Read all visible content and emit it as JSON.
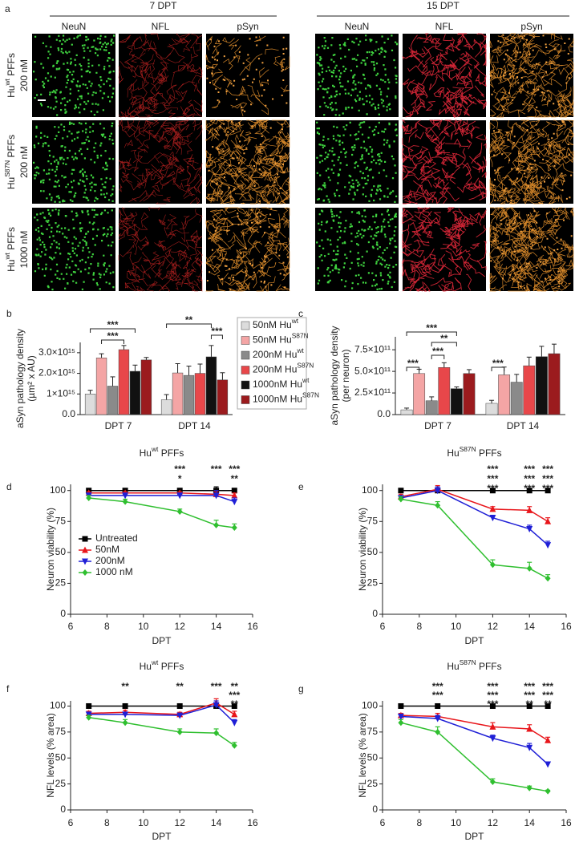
{
  "panel_a": {
    "label": "a",
    "timepoints": [
      "7 DPT",
      "15 DPT"
    ],
    "stains": [
      "NeuN",
      "NFL",
      "pSyn"
    ],
    "conditions": [
      {
        "name": "Hu",
        "sup": "wt",
        "suffix": " PFFs",
        "dose": "200 nM"
      },
      {
        "name": "Hu",
        "sup": "S87N",
        "suffix": " PFFs",
        "dose": "200 nM"
      },
      {
        "name": "Hu",
        "sup": "wt",
        "suffix": " PFFs",
        "dose": "1000 nM"
      }
    ]
  },
  "chart_data": [
    {
      "type": "bar",
      "panel": "b",
      "ylabel": [
        "aSyn pathology density",
        "(µm² x AU)"
      ],
      "categories": [
        "DPT 7",
        "DPT 14"
      ],
      "series": [
        {
          "name": "50nM Hu",
          "sup": "wt",
          "color": "#dcdcdc",
          "values": [
            1000000000000000.0,
            720000000000000.0
          ],
          "errors": [
            180000000000000.0,
            250000000000000.0
          ]
        },
        {
          "name": "50nM Hu",
          "sup": "S87N",
          "color": "#f4a5a5",
          "values": [
            2750000000000000.0,
            2020000000000000.0
          ],
          "errors": [
            200000000000000.0,
            450000000000000.0
          ]
        },
        {
          "name": "200nM Hu",
          "sup": "wt",
          "color": "#8a8a8a",
          "values": [
            1380000000000000.0,
            1900000000000000.0
          ],
          "errors": [
            450000000000000.0,
            450000000000000.0
          ]
        },
        {
          "name": "200nM Hu",
          "sup": "S87N",
          "color": "#e8474a",
          "values": [
            3150000000000000.0,
            2000000000000000.0
          ],
          "errors": [
            200000000000000.0,
            450000000000000.0
          ]
        },
        {
          "name": "1000nM Hu",
          "sup": "wt",
          "color": "#111111",
          "values": [
            2100000000000000.0,
            2800000000000000.0
          ],
          "errors": [
            300000000000000.0,
            550000000000000.0
          ]
        },
        {
          "name": "1000nM Hu",
          "sup": "S87N",
          "color": "#9b1b1e",
          "values": [
            2650000000000000.0,
            1680000000000000.0
          ],
          "errors": [
            120000000000000.0,
            350000000000000.0
          ]
        }
      ],
      "ylim": [
        0,
        3500000000000000.0
      ],
      "yticks": [
        {
          "value": 0,
          "label": "0.0"
        },
        {
          "value": 1000000000000000.0,
          "label": "1×10¹⁵"
        },
        {
          "value": 2000000000000000.0,
          "label": "2.0×10¹⁵"
        },
        {
          "value": 3000000000000000.0,
          "label": "3.0×10¹⁵"
        }
      ],
      "legend": "right",
      "significance": [
        "***",
        "***",
        "**",
        "***"
      ]
    },
    {
      "type": "bar",
      "panel": "c",
      "ylabel": [
        "aSyn pathology density",
        "(per neuron)"
      ],
      "categories": [
        "DPT 7",
        "DPT 14"
      ],
      "series": [
        {
          "color": "#dcdcdc",
          "values": [
            55000000000.0,
            130000000000.0
          ],
          "errors": [
            20000000000.0,
            35000000000.0
          ]
        },
        {
          "color": "#f4a5a5",
          "values": [
            475000000000.0,
            460000000000.0
          ],
          "errors": [
            50000000000.0,
            90000000000.0
          ]
        },
        {
          "color": "#8a8a8a",
          "values": [
            160000000000.0,
            375000000000.0
          ],
          "errors": [
            45000000000.0,
            90000000000.0
          ]
        },
        {
          "color": "#e8474a",
          "values": [
            545000000000.0,
            565000000000.0
          ],
          "errors": [
            55000000000.0,
            100000000000.0
          ]
        },
        {
          "color": "#111111",
          "values": [
            300000000000.0,
            670000000000.0
          ],
          "errors": [
            20000000000.0,
            120000000000.0
          ]
        },
        {
          "color": "#9b1b1e",
          "values": [
            475000000000.0,
            705000000000.0
          ],
          "errors": [
            45000000000.0,
            110000000000.0
          ]
        }
      ],
      "ylim": [
        0,
        900000000000.0
      ],
      "yticks": [
        {
          "value": 0,
          "label": "0.0"
        },
        {
          "value": 250000000000.0,
          "label": "2.5×10¹¹"
        },
        {
          "value": 500000000000.0,
          "label": "5.0×10¹¹"
        },
        {
          "value": 750000000000.0,
          "label": "7.5×10¹¹"
        }
      ],
      "significance": [
        "***",
        "***",
        "**",
        "***",
        "***"
      ]
    },
    {
      "type": "line",
      "panel": "d",
      "title": "Hu",
      "title_sup": "wt",
      "title_suffix": " PFFs",
      "xlabel": "DPT",
      "ylabel": "Neuron viability (%)",
      "x": [
        7,
        9,
        12,
        14,
        15
      ],
      "xlim": [
        6,
        16
      ],
      "xticks": [
        6,
        8,
        10,
        12,
        14,
        16
      ],
      "ylim": [
        0,
        105
      ],
      "yticks": [
        0,
        25,
        50,
        75,
        100
      ],
      "legend": "center left",
      "series": [
        {
          "name": "Untreated",
          "color": "#000000",
          "marker": "square",
          "values": [
            100,
            100,
            100,
            100,
            100
          ],
          "errors": [
            1,
            1,
            1,
            3,
            1
          ],
          "stars": [
            null,
            null,
            null,
            null,
            null
          ]
        },
        {
          "name": "50nM",
          "color": "#e8161b",
          "marker": "triangle-up",
          "values": [
            98,
            98,
            98,
            97,
            96
          ],
          "errors": [
            1,
            1,
            1,
            2,
            2
          ],
          "stars": [
            null,
            null,
            "*",
            null,
            null
          ]
        },
        {
          "name": "200nM",
          "color": "#1f1fd6",
          "marker": "triangle-down",
          "values": [
            96,
            96,
            96,
            96,
            91
          ],
          "errors": [
            2,
            2,
            2,
            4,
            3
          ],
          "stars": [
            null,
            null,
            null,
            null,
            "**"
          ]
        },
        {
          "name": "1000 nM",
          "color": "#2fbf2f",
          "marker": "diamond",
          "values": [
            94,
            91,
            83,
            72,
            70
          ],
          "errors": [
            2,
            2,
            2,
            4,
            3
          ],
          "stars": [
            null,
            null,
            "***",
            "***",
            "***"
          ]
        }
      ]
    },
    {
      "type": "line",
      "panel": "e",
      "title": "Hu",
      "title_sup": "S87N",
      "title_suffix": " PFFs",
      "xlabel": "DPT",
      "ylabel": "Neuron viability (%)",
      "x": [
        7,
        9,
        12,
        14,
        15
      ],
      "xlim": [
        6,
        16
      ],
      "xticks": [
        6,
        8,
        10,
        12,
        14,
        16
      ],
      "ylim": [
        0,
        105
      ],
      "yticks": [
        0,
        25,
        50,
        75,
        100
      ],
      "series": [
        {
          "color": "#000000",
          "marker": "square",
          "values": [
            100,
            100,
            100,
            100,
            100
          ],
          "errors": [
            1,
            1,
            1,
            1,
            1
          ],
          "stars": [
            null,
            null,
            null,
            null,
            null
          ]
        },
        {
          "color": "#e8161b",
          "marker": "triangle-up",
          "values": [
            95,
            101,
            85,
            84,
            75
          ],
          "errors": [
            2,
            3,
            2,
            3,
            3
          ],
          "stars": [
            null,
            null,
            "***",
            "***",
            "***"
          ]
        },
        {
          "color": "#1f1fd6",
          "marker": "triangle-down",
          "values": [
            94,
            100,
            78,
            69,
            56
          ],
          "errors": [
            2,
            3,
            2,
            3,
            3
          ],
          "stars": [
            null,
            null,
            "***",
            "***",
            "***"
          ]
        },
        {
          "color": "#2fbf2f",
          "marker": "diamond",
          "values": [
            93,
            88,
            40,
            37,
            29
          ],
          "errors": [
            2,
            3,
            4,
            5,
            3
          ],
          "stars": [
            null,
            null,
            "***",
            "***",
            "***"
          ]
        }
      ]
    },
    {
      "type": "line",
      "panel": "f",
      "title": "Hu",
      "title_sup": "wt",
      "title_suffix": " PFFs",
      "xlabel": "DPT",
      "ylabel": "NFL levels (% area)",
      "x": [
        7,
        9,
        12,
        14,
        15
      ],
      "xlim": [
        6,
        16
      ],
      "xticks": [
        6,
        8,
        10,
        12,
        14,
        16
      ],
      "ylim": [
        0,
        105
      ],
      "yticks": [
        0,
        25,
        50,
        75,
        100
      ],
      "series": [
        {
          "color": "#000000",
          "marker": "square",
          "values": [
            100,
            100,
            100,
            100,
            100
          ],
          "errors": [
            1,
            1,
            1,
            1,
            1
          ],
          "stars": [
            null,
            null,
            null,
            null,
            null
          ]
        },
        {
          "color": "#e8161b",
          "marker": "triangle-up",
          "values": [
            93,
            94,
            92,
            103,
            92
          ],
          "errors": [
            2,
            2,
            2,
            4,
            3
          ],
          "stars": [
            null,
            null,
            null,
            null,
            "**"
          ]
        },
        {
          "color": "#1f1fd6",
          "marker": "triangle-down",
          "values": [
            92,
            92,
            91,
            101,
            84
          ],
          "errors": [
            2,
            2,
            2,
            4,
            3
          ],
          "stars": [
            null,
            null,
            null,
            null,
            "***"
          ]
        },
        {
          "color": "#2fbf2f",
          "marker": "diamond",
          "values": [
            89,
            84,
            75,
            74,
            62
          ],
          "errors": [
            2,
            3,
            3,
            4,
            3
          ],
          "stars": [
            null,
            "**",
            "**",
            "***",
            "**"
          ]
        }
      ]
    },
    {
      "type": "line",
      "panel": "g",
      "title": "Hu",
      "title_sup": "S87N",
      "title_suffix": " PFFs",
      "xlabel": "DPT",
      "ylabel": "NFL levels (% area)",
      "x": [
        7,
        9,
        12,
        14,
        15
      ],
      "xlim": [
        6,
        16
      ],
      "xticks": [
        6,
        8,
        10,
        12,
        14,
        16
      ],
      "ylim": [
        0,
        105
      ],
      "yticks": [
        0,
        25,
        50,
        75,
        100
      ],
      "series": [
        {
          "color": "#000000",
          "marker": "square",
          "values": [
            100,
            100,
            100,
            100,
            100
          ],
          "errors": [
            1,
            1,
            1,
            1,
            1
          ],
          "stars": [
            null,
            null,
            null,
            null,
            null
          ]
        },
        {
          "color": "#e8161b",
          "marker": "triangle-up",
          "values": [
            91,
            90,
            80,
            78,
            67
          ],
          "errors": [
            2,
            3,
            4,
            4,
            3
          ],
          "stars": [
            null,
            null,
            "***",
            "**",
            "**"
          ]
        },
        {
          "color": "#1f1fd6",
          "marker": "triangle-down",
          "values": [
            90,
            88,
            69,
            60,
            44
          ],
          "errors": [
            2,
            3,
            3,
            4,
            2
          ],
          "stars": [
            null,
            "***",
            "***",
            "***",
            "***"
          ]
        },
        {
          "color": "#2fbf2f",
          "marker": "diamond",
          "values": [
            84,
            75,
            27,
            21,
            18
          ],
          "errors": [
            3,
            5,
            3,
            2,
            1
          ],
          "stars": [
            null,
            "***",
            "***",
            "***",
            "***"
          ]
        }
      ]
    }
  ]
}
